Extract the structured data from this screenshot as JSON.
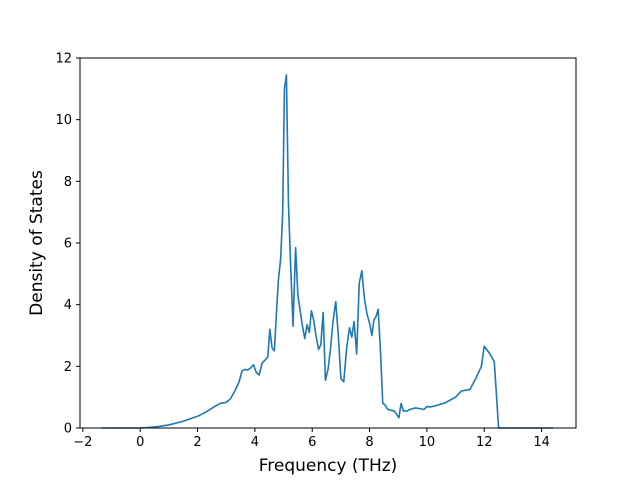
{
  "chart_data": {
    "type": "line",
    "title": "",
    "xlabel": "Frequency (THz)",
    "ylabel": "Density of States",
    "xlim": [
      -2.1,
      15.2
    ],
    "ylim": [
      0,
      12
    ],
    "xticks": [
      -2,
      0,
      2,
      4,
      6,
      8,
      10,
      12,
      14
    ],
    "xtick_labels": [
      "−2",
      "0",
      "2",
      "4",
      "6",
      "8",
      "10",
      "12",
      "14"
    ],
    "yticks": [
      0,
      2,
      4,
      6,
      8,
      10,
      12
    ],
    "ytick_labels": [
      "0",
      "2",
      "4",
      "6",
      "8",
      "10",
      "12"
    ],
    "grid": false,
    "series": [
      {
        "color": "#1f77b4",
        "x": [
          -1.35,
          0.0,
          0.5,
          1.0,
          1.5,
          2.0,
          2.3,
          2.6,
          2.8,
          3.0,
          3.15,
          3.3,
          3.45,
          3.55,
          3.65,
          3.75,
          3.85,
          3.95,
          4.05,
          4.15,
          4.25,
          4.35,
          4.45,
          4.52,
          4.6,
          4.68,
          4.75,
          4.82,
          4.9,
          4.97,
          5.03,
          5.1,
          5.17,
          5.25,
          5.33,
          5.42,
          5.5,
          5.58,
          5.66,
          5.74,
          5.82,
          5.9,
          5.97,
          6.05,
          6.13,
          6.22,
          6.3,
          6.38,
          6.46,
          6.55,
          6.64,
          6.73,
          6.82,
          6.91,
          7.0,
          7.1,
          7.2,
          7.3,
          7.38,
          7.46,
          7.55,
          7.64,
          7.73,
          7.82,
          7.91,
          8.0,
          8.08,
          8.15,
          8.22,
          8.3,
          8.38,
          8.46,
          8.54,
          8.62,
          8.7,
          8.78,
          8.86,
          8.94,
          9.02,
          9.1,
          9.18,
          9.3,
          9.4,
          9.6,
          9.8,
          9.9,
          9.95,
          10.0,
          10.1,
          10.3,
          10.5,
          10.6,
          10.8,
          11.0,
          11.2,
          11.5,
          11.7,
          11.9,
          12.0,
          12.2,
          12.35,
          12.5,
          12.6,
          12.7,
          12.8,
          12.9,
          13.0,
          13.05,
          13.1,
          13.15,
          14.4
        ],
        "y": [
          0.0,
          0.0,
          0.03,
          0.1,
          0.22,
          0.38,
          0.52,
          0.7,
          0.8,
          0.83,
          0.95,
          1.2,
          1.5,
          1.85,
          1.9,
          1.88,
          1.95,
          2.05,
          1.8,
          1.72,
          2.1,
          2.2,
          2.3,
          3.2,
          2.6,
          2.5,
          3.7,
          4.8,
          5.5,
          7.0,
          11.0,
          11.45,
          7.3,
          5.2,
          3.3,
          5.85,
          4.3,
          3.8,
          3.3,
          2.9,
          3.35,
          3.1,
          3.8,
          3.5,
          3.0,
          2.55,
          2.7,
          3.75,
          1.55,
          1.9,
          2.6,
          3.5,
          4.1,
          3.0,
          1.6,
          1.5,
          2.6,
          3.25,
          2.95,
          3.45,
          2.4,
          4.7,
          5.1,
          4.2,
          3.7,
          3.4,
          3.0,
          3.5,
          3.6,
          3.85,
          2.5,
          0.8,
          0.75,
          0.62,
          0.58,
          0.57,
          0.55,
          0.45,
          0.33,
          0.8,
          0.55,
          0.55,
          0.6,
          0.65,
          0.62,
          0.6,
          0.65,
          0.7,
          0.68,
          0.72,
          0.78,
          0.8,
          0.9,
          1.0,
          1.2,
          1.25,
          1.6,
          2.0,
          2.65,
          2.4,
          2.15,
          0.0,
          0.0,
          0.0,
          0.0,
          0.0,
          0.0,
          0.0,
          0.0,
          0.0,
          0.0
        ]
      }
    ]
  }
}
